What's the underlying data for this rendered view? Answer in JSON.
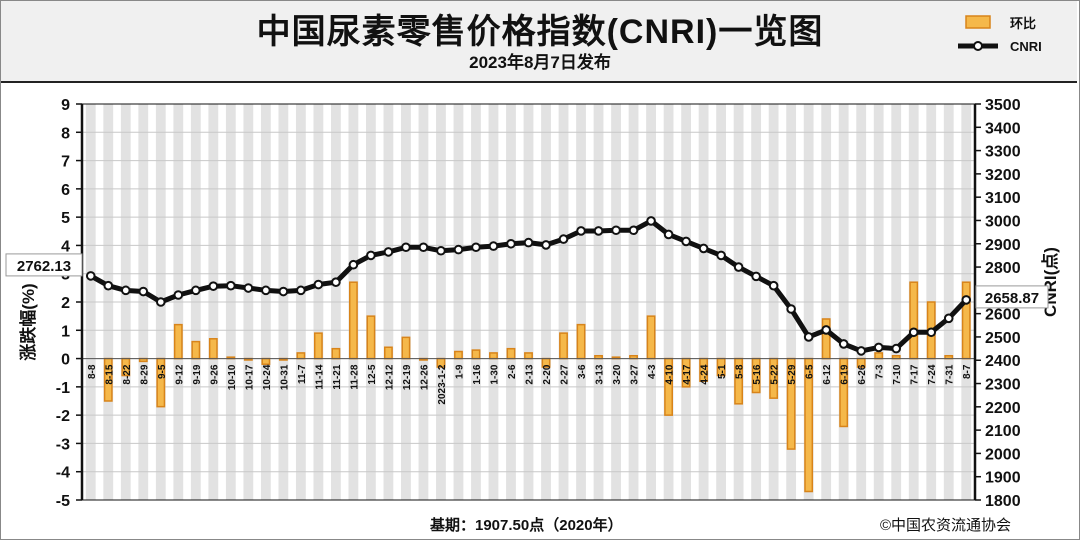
{
  "title": "中国尿素零售价格指数(CNRI)一览图",
  "subtitle": "2023年8月7日发布",
  "footer": {
    "base": "基期：1907.50点（2020年）",
    "copyright": "©中国农资流通协会"
  },
  "colors": {
    "bar_fill": "#f5b84a",
    "bar_edge": "#d8841a",
    "line": "#111111",
    "grid_bg": "#e2e2e2"
  },
  "chart_data": {
    "type": "bar+line",
    "categories": [
      "8-8",
      "8-15",
      "8-22",
      "8-29",
      "9-5",
      "9-12",
      "9-19",
      "9-26",
      "10-10",
      "10-17",
      "10-24",
      "10-31",
      "11-7",
      "11-14",
      "11-21",
      "11-28",
      "12-5",
      "12-12",
      "12-19",
      "12-26",
      "2023-1-2",
      "1-9",
      "1-16",
      "1-30",
      "2-6",
      "2-13",
      "2-20",
      "2-27",
      "3-6",
      "3-13",
      "3-20",
      "3-27",
      "4-3",
      "4-10",
      "4-17",
      "4-24",
      "5-1",
      "5-8",
      "5-16",
      "5-22",
      "5-29",
      "6-5",
      "6-12",
      "6-19",
      "6-26",
      "7-3",
      "7-10",
      "7-17",
      "7-24",
      "7-31",
      "8-7"
    ],
    "series": [
      {
        "name": "环比",
        "axis": "left",
        "type": "bar",
        "values": [
          0,
          -1.5,
          -0.6,
          -0.1,
          -1.7,
          1.2,
          0.6,
          0.7,
          0.05,
          -0.05,
          -0.2,
          -0.05,
          0.2,
          0.9,
          0.35,
          2.7,
          1.5,
          0.4,
          0.75,
          -0.05,
          -0.3,
          0.25,
          0.3,
          0.2,
          0.35,
          0.2,
          -0.3,
          0.9,
          1.2,
          0.1,
          0.05,
          0.1,
          1.5,
          -2.0,
          -1.0,
          -0.8,
          -0.6,
          -1.6,
          -1.2,
          -1.4,
          -3.2,
          -4.7,
          1.4,
          -2.4,
          -0.3,
          0.2,
          0.1,
          2.7,
          2.0,
          0.1,
          2.7
        ]
      },
      {
        "name": "CNRI",
        "axis": "right",
        "type": "line",
        "values": [
          2762,
          2720,
          2700,
          2695,
          2650,
          2680,
          2700,
          2718,
          2720,
          2710,
          2700,
          2695,
          2700,
          2725,
          2735,
          2810,
          2850,
          2865,
          2885,
          2885,
          2870,
          2875,
          2885,
          2890,
          2900,
          2905,
          2895,
          2920,
          2955,
          2955,
          2958,
          2958,
          2998,
          2940,
          2910,
          2880,
          2850,
          2800,
          2760,
          2720,
          2620,
          2500,
          2530,
          2470,
          2440,
          2455,
          2450,
          2520,
          2520,
          2580,
          2659
        ]
      }
    ],
    "annotations": {
      "first_value": "2762.13",
      "last_value": "2658.87"
    },
    "ylabel": "涨跌幅(%)",
    "y2label": "CNRI(点)",
    "ylim": [
      -5,
      9
    ],
    "y2lim": [
      1800,
      3500
    ],
    "yticks": [
      -5,
      -4,
      -3,
      -2,
      -1,
      0,
      1,
      2,
      3,
      4,
      5,
      6,
      7,
      8,
      9
    ],
    "y2ticks": [
      1800,
      1900,
      2000,
      2100,
      2200,
      2300,
      2400,
      2500,
      2600,
      2700,
      2800,
      2900,
      3000,
      3100,
      3200,
      3300,
      3400,
      3500
    ],
    "legend": "top-right",
    "grid": true
  }
}
